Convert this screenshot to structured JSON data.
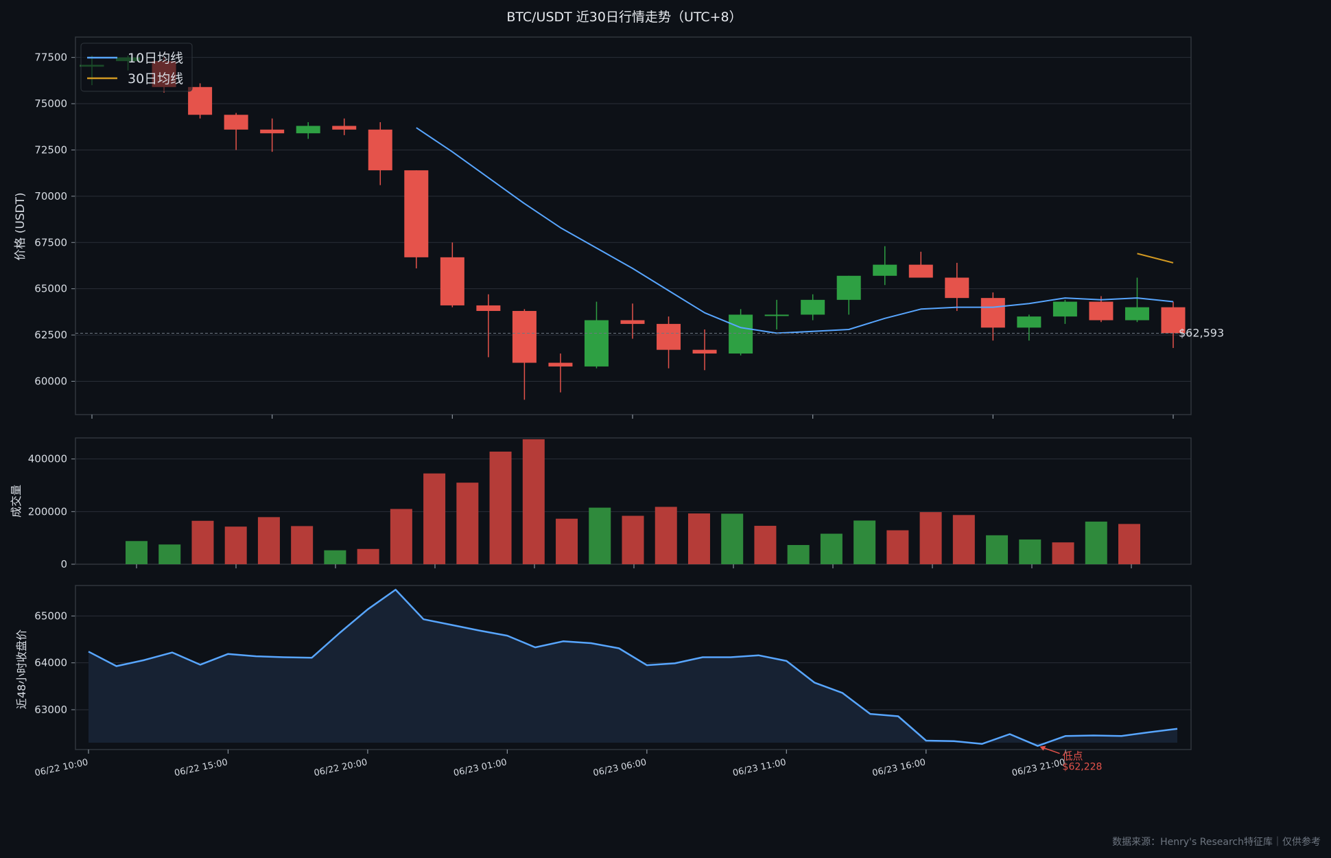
{
  "title": "BTC/USDT  近30日行情走势（UTC+8）",
  "source": "数据来源：Henry's Research特征库｜仅供参考",
  "colors": {
    "background": "#0d1117",
    "up": "#2ea043",
    "down": "#e5534b",
    "ma10": "#58a6ff",
    "ma30": "#d29922",
    "area_fill": "#172233",
    "grid": "#2a2f38",
    "text": "#d7dce3"
  },
  "chart_data": [
    {
      "type": "candlestick",
      "ylabel": "价格 (USDT)",
      "ylim": [
        58200,
        78600
      ],
      "yticks": [
        60000,
        62500,
        65000,
        67500,
        70000,
        72500,
        75000,
        77500
      ],
      "legend": {
        "placement": "top-left",
        "entries": [
          "10日均线",
          "30日均线"
        ]
      },
      "last_price_label": "$62,593",
      "last_price": 62593,
      "candles": [
        {
          "o": 77000,
          "h": 77600,
          "l": 76000,
          "c": 77100
        },
        {
          "o": 77300,
          "h": 77600,
          "l": 76800,
          "c": 77500
        },
        {
          "o": 77300,
          "h": 77500,
          "l": 75600,
          "c": 75900
        },
        {
          "o": 75900,
          "h": 76100,
          "l": 74200,
          "c": 74400
        },
        {
          "o": 74400,
          "h": 74500,
          "l": 72500,
          "c": 73600
        },
        {
          "o": 73600,
          "h": 74200,
          "l": 72400,
          "c": 73400
        },
        {
          "o": 73400,
          "h": 74000,
          "l": 73100,
          "c": 73800
        },
        {
          "o": 73800,
          "h": 74200,
          "l": 73300,
          "c": 73600
        },
        {
          "o": 73600,
          "h": 74000,
          "l": 70600,
          "c": 71400
        },
        {
          "o": 71400,
          "h": 71400,
          "l": 66100,
          "c": 66700
        },
        {
          "o": 66700,
          "h": 67500,
          "l": 64000,
          "c": 64100
        },
        {
          "o": 64100,
          "h": 64700,
          "l": 61300,
          "c": 63800
        },
        {
          "o": 63800,
          "h": 63900,
          "l": 59000,
          "c": 61000
        },
        {
          "o": 61000,
          "h": 61500,
          "l": 59400,
          "c": 60800
        },
        {
          "o": 60800,
          "h": 64300,
          "l": 60700,
          "c": 63300
        },
        {
          "o": 63300,
          "h": 64200,
          "l": 62300,
          "c": 63100
        },
        {
          "o": 63100,
          "h": 63500,
          "l": 60700,
          "c": 61700
        },
        {
          "o": 61700,
          "h": 62800,
          "l": 60600,
          "c": 61500
        },
        {
          "o": 61500,
          "h": 63900,
          "l": 61400,
          "c": 63600
        },
        {
          "o": 63600,
          "h": 64400,
          "l": 62800,
          "c": 63600
        },
        {
          "o": 63600,
          "h": 64700,
          "l": 63300,
          "c": 64400
        },
        {
          "o": 64400,
          "h": 65700,
          "l": 63600,
          "c": 65700
        },
        {
          "o": 65700,
          "h": 67300,
          "l": 65200,
          "c": 66300
        },
        {
          "o": 66300,
          "h": 67000,
          "l": 65600,
          "c": 65600
        },
        {
          "o": 65600,
          "h": 66400,
          "l": 63800,
          "c": 64500
        },
        {
          "o": 64500,
          "h": 64800,
          "l": 62200,
          "c": 62900
        },
        {
          "o": 62900,
          "h": 63600,
          "l": 62200,
          "c": 63500
        },
        {
          "o": 63500,
          "h": 64400,
          "l": 63100,
          "c": 64300
        },
        {
          "o": 64300,
          "h": 64600,
          "l": 63200,
          "c": 63300
        },
        {
          "o": 63300,
          "h": 65600,
          "l": 63200,
          "c": 64000
        },
        {
          "o": 64000,
          "h": 64300,
          "l": 61800,
          "c": 62600
        }
      ],
      "ma10": [
        null,
        null,
        null,
        null,
        null,
        null,
        null,
        null,
        null,
        73700,
        72400,
        71000,
        69600,
        68300,
        67200,
        66100,
        64900,
        63700,
        62900,
        62600,
        62700,
        62800,
        63400,
        63900,
        64000,
        64000,
        64200,
        64500,
        64400,
        64500,
        64300
      ],
      "ma30": [
        null,
        null,
        null,
        null,
        null,
        null,
        null,
        null,
        null,
        null,
        null,
        null,
        null,
        null,
        null,
        null,
        null,
        null,
        null,
        null,
        null,
        null,
        null,
        null,
        null,
        null,
        null,
        null,
        null,
        66900,
        66400
      ]
    },
    {
      "type": "bar",
      "ylabel": "成交量",
      "ylim": [
        0,
        480000
      ],
      "yticks": [
        0,
        200000,
        400000
      ],
      "values": [
        88000,
        75000,
        165000,
        143000,
        179000,
        145000,
        53000,
        58000,
        210000,
        345000,
        310000,
        428000,
        475000,
        173000,
        215000,
        184000,
        218000,
        193000,
        192000,
        146000,
        73000,
        116000,
        166000,
        129000,
        198000,
        187000,
        110000,
        94000,
        83000,
        162000,
        153000
      ],
      "directions": [
        "up",
        "up",
        "down",
        "down",
        "down",
        "down",
        "up",
        "down",
        "down",
        "down",
        "down",
        "down",
        "down",
        "down",
        "up",
        "down",
        "down",
        "down",
        "up",
        "down",
        "up",
        "up",
        "up",
        "down",
        "down",
        "down",
        "up",
        "up",
        "down",
        "up",
        "down"
      ]
    },
    {
      "type": "area",
      "ylabel": "近48小时收盘价",
      "ylim": [
        62150,
        65650
      ],
      "yticks": [
        63000,
        64000,
        65000
      ],
      "x_start": "06/22 10:00",
      "x_step_hours": 1,
      "xtick_labels": [
        "06/22 10:00",
        "06/22 15:00",
        "06/22 20:00",
        "06/23 01:00",
        "06/23 06:00",
        "06/23 11:00",
        "06/23 16:00",
        "06/23 21:00"
      ],
      "values": [
        64240,
        63930,
        64060,
        64220,
        63960,
        64190,
        64140,
        64120,
        64110,
        64640,
        65140,
        65560,
        64930,
        64810,
        64690,
        64580,
        64330,
        64460,
        64420,
        64310,
        63950,
        63990,
        64120,
        64120,
        64160,
        64040,
        63580,
        63360,
        62910,
        62860,
        62340,
        62330,
        62270,
        62480,
        62228,
        62440,
        62450,
        62440,
        62520,
        62593
      ],
      "annotation": {
        "label": "低点",
        "value_label": "$62,228",
        "value": 62228
      }
    }
  ]
}
